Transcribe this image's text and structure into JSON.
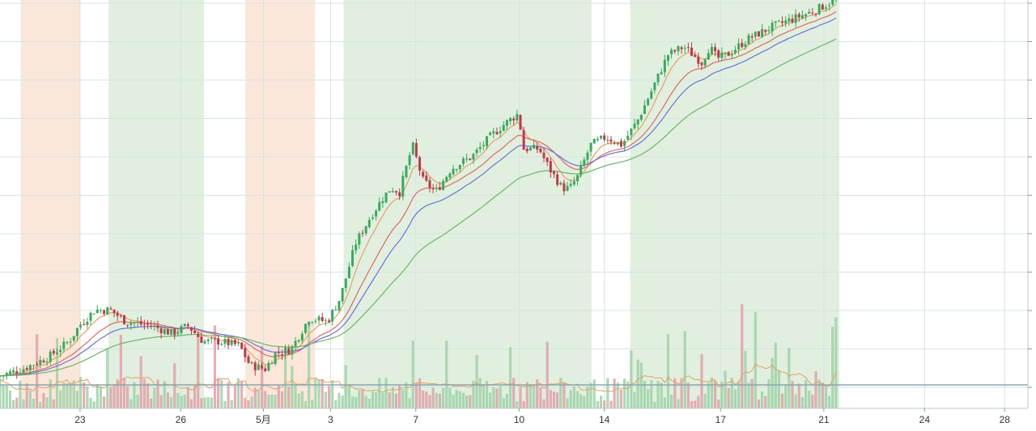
{
  "chart_data": {
    "type": "candlestick",
    "x_tick_labels": [
      "23",
      "26",
      "5月",
      "3",
      "7",
      "10",
      "14",
      "17",
      "21",
      "24",
      "28"
    ],
    "x_tick_days": [
      -12.5,
      -8.6,
      -5.4,
      -2.8,
      0.5,
      4.5,
      7.8,
      12.3,
      16.3,
      20.2,
      23.3
    ],
    "x_range": [
      -15.6,
      24.2
    ],
    "price_range": [
      0,
      1
    ],
    "shaded_periods": [
      {
        "start": -14.8,
        "end": -12.5,
        "kind": "down"
      },
      {
        "start": -11.4,
        "end": -7.7,
        "kind": "up"
      },
      {
        "start": -6.1,
        "end": -3.4,
        "kind": "down"
      },
      {
        "start": -2.3,
        "end": 7.3,
        "kind": "up"
      },
      {
        "start": 8.8,
        "end": 16.9,
        "kind": "up"
      }
    ],
    "last_data_day": 16.9,
    "price_path": [
      {
        "t": -15.6,
        "p": 0.07
      },
      {
        "t": -14.6,
        "p": 0.09
      },
      {
        "t": -13.6,
        "p": 0.12
      },
      {
        "t": -12.8,
        "p": 0.16
      },
      {
        "t": -12.4,
        "p": 0.2
      },
      {
        "t": -11.8,
        "p": 0.24
      },
      {
        "t": -11.2,
        "p": 0.24
      },
      {
        "t": -10.6,
        "p": 0.21
      },
      {
        "t": -9.6,
        "p": 0.2
      },
      {
        "t": -8.8,
        "p": 0.18
      },
      {
        "t": -8.2,
        "p": 0.2
      },
      {
        "t": -7.6,
        "p": 0.16
      },
      {
        "t": -7.0,
        "p": 0.16
      },
      {
        "t": -6.2,
        "p": 0.15
      },
      {
        "t": -5.8,
        "p": 0.1
      },
      {
        "t": -5.2,
        "p": 0.09
      },
      {
        "t": -4.8,
        "p": 0.13
      },
      {
        "t": -4.2,
        "p": 0.14
      },
      {
        "t": -3.5,
        "p": 0.22
      },
      {
        "t": -2.8,
        "p": 0.21
      },
      {
        "t": -2.3,
        "p": 0.27
      },
      {
        "t": -1.7,
        "p": 0.41
      },
      {
        "t": -1.1,
        "p": 0.48
      },
      {
        "t": -0.6,
        "p": 0.53
      },
      {
        "t": -0.3,
        "p": 0.55
      },
      {
        "t": 0.0,
        "p": 0.54
      },
      {
        "t": 0.5,
        "p": 0.66
      },
      {
        "t": 0.9,
        "p": 0.57
      },
      {
        "t": 1.4,
        "p": 0.54
      },
      {
        "t": 2.0,
        "p": 0.6
      },
      {
        "t": 2.8,
        "p": 0.63
      },
      {
        "t": 3.5,
        "p": 0.68
      },
      {
        "t": 4.0,
        "p": 0.71
      },
      {
        "t": 4.6,
        "p": 0.74
      },
      {
        "t": 4.8,
        "p": 0.65
      },
      {
        "t": 5.4,
        "p": 0.65
      },
      {
        "t": 5.8,
        "p": 0.6
      },
      {
        "t": 6.3,
        "p": 0.55
      },
      {
        "t": 6.6,
        "p": 0.55
      },
      {
        "t": 6.9,
        "p": 0.58
      },
      {
        "t": 7.4,
        "p": 0.66
      },
      {
        "t": 8.0,
        "p": 0.68
      },
      {
        "t": 8.6,
        "p": 0.66
      },
      {
        "t": 9.2,
        "p": 0.72
      },
      {
        "t": 9.7,
        "p": 0.79
      },
      {
        "t": 10.4,
        "p": 0.89
      },
      {
        "t": 11.0,
        "p": 0.91
      },
      {
        "t": 11.7,
        "p": 0.87
      },
      {
        "t": 12.0,
        "p": 0.91
      },
      {
        "t": 12.3,
        "p": 0.88
      },
      {
        "t": 12.7,
        "p": 0.89
      },
      {
        "t": 13.5,
        "p": 0.93
      },
      {
        "t": 14.4,
        "p": 0.96
      },
      {
        "t": 15.2,
        "p": 0.98
      },
      {
        "t": 16.0,
        "p": 1.0
      },
      {
        "t": 16.9,
        "p": 1.03
      }
    ],
    "series": [
      {
        "name": "",
        "color": "#e8a062",
        "period": 20
      },
      {
        "name": "",
        "color": "#e06a5e",
        "period": 50
      },
      {
        "name": "",
        "color": "#6a72d8",
        "period": 75
      },
      {
        "name": "",
        "color": "#6ab76a",
        "period": 150
      }
    ],
    "colors": {
      "up": "#3aaa5c",
      "down": "#c0394b",
      "shade_up": "#e1efdf",
      "shade_down": "#fbe7d9",
      "grid": "#d4e3e8",
      "axis_text": "#333333",
      "baseline": "#8aa5ad"
    }
  }
}
